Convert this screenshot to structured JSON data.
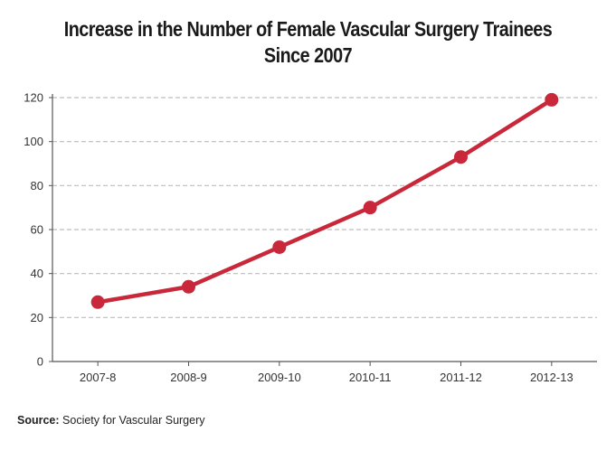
{
  "chart_data": {
    "type": "line",
    "title_lines": [
      "Increase in the Number of Female Vascular Surgery Trainees",
      "Since 2007"
    ],
    "xlabel": "",
    "ylabel": "",
    "categories": [
      "2007-8",
      "2008-9",
      "2009-10",
      "2010-11",
      "2011-12",
      "2012-13"
    ],
    "series": [
      {
        "values": [
          27,
          34,
          52,
          70,
          93,
          119
        ]
      }
    ],
    "ylim": [
      0,
      120
    ],
    "yticks": [
      0,
      20,
      40,
      60,
      80,
      100,
      120
    ],
    "grid": true,
    "grid_style": "dashed",
    "legend": "none",
    "line_color": "#c8283a",
    "grid_color": "#bdbdbd",
    "axis_color": "#555555"
  },
  "source": {
    "label": "Source:",
    "text": "Society for Vascular Surgery"
  }
}
